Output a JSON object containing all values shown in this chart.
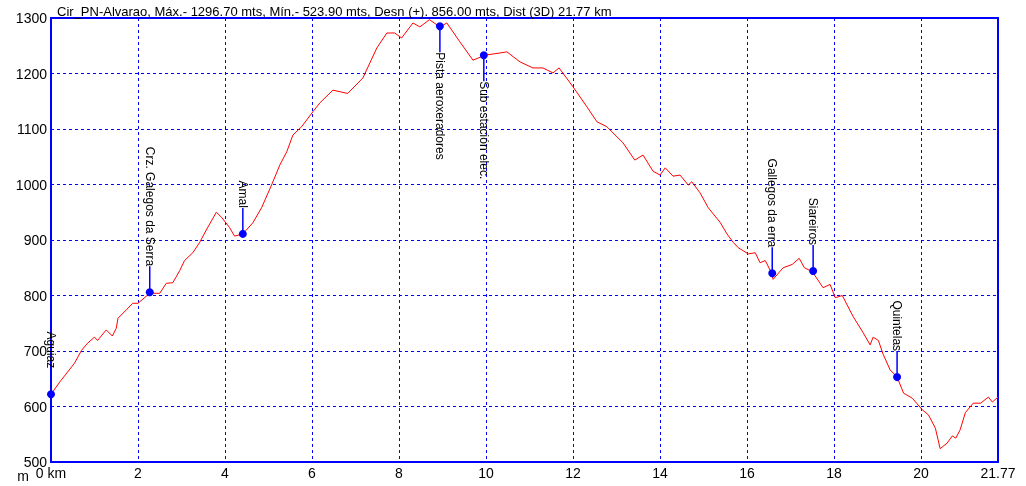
{
  "chart_data": {
    "type": "line",
    "title": "Cir_PN-Alvarao, Máx.- 1296.70 mts, Mín.- 523.90 mts, Desn (+). 856.00 mts, Dist (3D) 21.77 km",
    "ylabel": "m",
    "x": [
      0,
      0.2,
      0.38,
      0.54,
      0.7,
      0.84,
      1.0,
      1.07,
      1.27,
      1.41,
      1.5,
      1.54,
      1.73,
      1.88,
      2.0,
      2.27,
      2.5,
      2.65,
      2.8,
      2.96,
      3.07,
      3.26,
      3.42,
      3.57,
      3.8,
      3.92,
      4.1,
      4.22,
      4.41,
      4.64,
      4.84,
      5.07,
      5.26,
      5.42,
      5.56,
      5.76,
      6.02,
      6.18,
      6.48,
      6.82,
      7.17,
      7.49,
      7.72,
      7.9,
      8.06,
      8.32,
      8.48,
      8.7,
      8.94,
      9.1,
      9.4,
      9.7,
      9.98,
      10.32,
      10.48,
      10.78,
      11.08,
      11.31,
      11.54,
      11.68,
      12.0,
      12.32,
      12.55,
      12.78,
      13.15,
      13.42,
      13.61,
      13.84,
      14.0,
      14.12,
      14.3,
      14.46,
      14.65,
      14.73,
      14.92,
      15.11,
      15.38,
      15.54,
      15.68,
      15.8,
      16.03,
      16.19,
      16.3,
      16.42,
      16.56,
      16.6,
      16.83,
      17.04,
      17.2,
      17.32,
      17.5,
      17.75,
      17.91,
      18.03,
      18.19,
      18.44,
      18.67,
      18.83,
      18.9,
      19.02,
      19.13,
      19.29,
      19.45,
      19.6,
      19.8,
      20.03,
      20.17,
      20.33,
      20.44,
      20.6,
      20.72,
      20.8,
      20.9,
      21.02,
      21.2,
      21.37,
      21.55,
      21.64,
      21.77
    ],
    "series": [
      {
        "color": "#ff0000",
        "values": [
          622,
          644,
          662,
          678,
          701,
          714,
          725,
          719,
          738,
          727,
          741,
          759,
          774,
          786,
          786,
          804,
          804,
          822,
          823,
          845,
          863,
          877,
          896,
          918,
          950,
          941,
          923,
          907,
          911,
          931,
          958,
          999,
          1035,
          1059,
          1089,
          1104,
          1131,
          1147,
          1170,
          1164,
          1192,
          1246,
          1273,
          1273,
          1264,
          1291,
          1284,
          1297,
          1284,
          1291,
          1257,
          1224,
          1233,
          1237,
          1239,
          1221,
          1210,
          1210,
          1201,
          1210,
          1176,
          1140,
          1113,
          1104,
          1075,
          1044,
          1053,
          1024,
          1017,
          1030,
          1015,
          1017,
          999,
          1005,
          985,
          958,
          932,
          911,
          896,
          886,
          875,
          877,
          859,
          863,
          841,
          829,
          850,
          856,
          867,
          850,
          843,
          814,
          820,
          796,
          800,
          762,
          733,
          711,
          725,
          719,
          694,
          666,
          653,
          624,
          615,
          594,
          585,
          561,
          524,
          534,
          547,
          543,
          558,
          589,
          606,
          606,
          617,
          608,
          617
        ]
      }
    ],
    "xlim": [
      0,
      21.77
    ],
    "xticks": [
      {
        "value": 0,
        "label": "0 km"
      },
      2,
      4,
      6,
      8,
      10,
      12,
      14,
      16,
      18,
      20,
      21.77
    ],
    "ylim": [
      500,
      1300
    ],
    "yticks": [
      500,
      600,
      700,
      800,
      900,
      1000,
      1100,
      1200,
      1300
    ],
    "grid": true,
    "line_style": "solid",
    "marker": "none",
    "annotations": [
      {
        "text": "Aguiaz",
        "x": 0,
        "y": 622
      },
      {
        "text": "Crz. Galegos da Serra",
        "x": 2.27,
        "y": 806
      },
      {
        "text": "Amal",
        "x": 4.41,
        "y": 911
      },
      {
        "text": "Pista aeroxeradores",
        "x": 8.94,
        "y": 1285
      },
      {
        "text": "Sub estación elec.",
        "x": 9.95,
        "y": 1233
      },
      {
        "text": "Gallegos da erra",
        "x": 16.58,
        "y": 840
      },
      {
        "text": "Siareiros",
        "x": 17.52,
        "y": 844
      },
      {
        "text": "Quintelas",
        "x": 19.45,
        "y": 653
      }
    ]
  }
}
